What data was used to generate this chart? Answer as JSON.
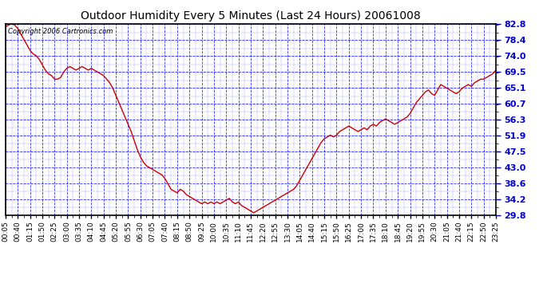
{
  "title": "Outdoor Humidity Every 5 Minutes (Last 24 Hours) 20061008",
  "copyright": "Copyright 2006 Cartronics.com",
  "background_color": "#ffffff",
  "plot_bg_color": "#ffffff",
  "grid_color": "#0000ff",
  "line_color": "#cc0000",
  "yticks": [
    29.8,
    34.2,
    38.6,
    43.0,
    47.5,
    51.9,
    56.3,
    60.7,
    65.1,
    69.5,
    74.0,
    78.4,
    82.8
  ],
  "ylim": [
    29.8,
    82.8
  ],
  "xtick_labels": [
    "00:05",
    "00:40",
    "01:15",
    "01:50",
    "02:25",
    "03:00",
    "03:35",
    "04:10",
    "04:45",
    "05:20",
    "05:55",
    "06:30",
    "07:05",
    "07:40",
    "08:15",
    "08:50",
    "09:25",
    "10:00",
    "10:35",
    "11:10",
    "11:45",
    "12:20",
    "12:55",
    "13:30",
    "14:05",
    "14:40",
    "15:15",
    "15:50",
    "16:25",
    "17:00",
    "17:35",
    "18:10",
    "18:45",
    "19:20",
    "19:55",
    "20:30",
    "21:05",
    "21:40",
    "22:15",
    "22:50",
    "23:25"
  ],
  "humidity_data": [
    82.0,
    82.5,
    82.8,
    82.5,
    81.5,
    80.0,
    78.5,
    77.0,
    75.5,
    74.5,
    74.0,
    73.0,
    71.5,
    70.0,
    69.0,
    68.5,
    67.5,
    67.5,
    68.0,
    69.5,
    70.5,
    71.0,
    70.5,
    70.0,
    70.5,
    71.0,
    70.5,
    70.0,
    70.5,
    70.0,
    69.5,
    69.0,
    68.5,
    67.5,
    66.5,
    65.0,
    63.0,
    61.0,
    59.0,
    57.0,
    55.0,
    53.0,
    50.5,
    48.0,
    46.0,
    44.5,
    43.5,
    43.0,
    42.5,
    42.0,
    41.5,
    41.0,
    40.0,
    38.5,
    37.0,
    36.5,
    36.0,
    37.0,
    36.5,
    35.5,
    35.0,
    34.5,
    34.0,
    33.5,
    33.0,
    33.5,
    33.0,
    33.5,
    33.0,
    33.5,
    33.0,
    33.5,
    34.0,
    34.5,
    33.5,
    33.0,
    33.5,
    32.5,
    32.0,
    31.5,
    31.0,
    30.5,
    31.0,
    31.5,
    32.0,
    32.5,
    33.0,
    33.5,
    34.0,
    34.5,
    35.0,
    35.5,
    36.0,
    36.5,
    37.0,
    38.0,
    39.5,
    41.0,
    42.5,
    44.0,
    45.5,
    47.0,
    48.5,
    50.0,
    51.0,
    51.5,
    52.0,
    51.5,
    52.0,
    53.0,
    53.5,
    54.0,
    54.5,
    54.0,
    53.5,
    53.0,
    53.5,
    54.0,
    53.5,
    54.5,
    55.0,
    54.5,
    55.5,
    56.0,
    56.5,
    56.0,
    55.5,
    55.0,
    55.5,
    56.0,
    56.5,
    57.0,
    58.0,
    59.5,
    61.0,
    62.0,
    63.0,
    64.0,
    64.5,
    63.5,
    63.0,
    64.5,
    66.0,
    65.5,
    65.0,
    64.5,
    64.0,
    63.5,
    64.0,
    65.0,
    65.5,
    66.0,
    65.5,
    66.5,
    67.0,
    67.5,
    67.5,
    68.0,
    68.5,
    69.0,
    70.0
  ],
  "figsize": [
    6.9,
    3.75
  ],
  "dpi": 100
}
